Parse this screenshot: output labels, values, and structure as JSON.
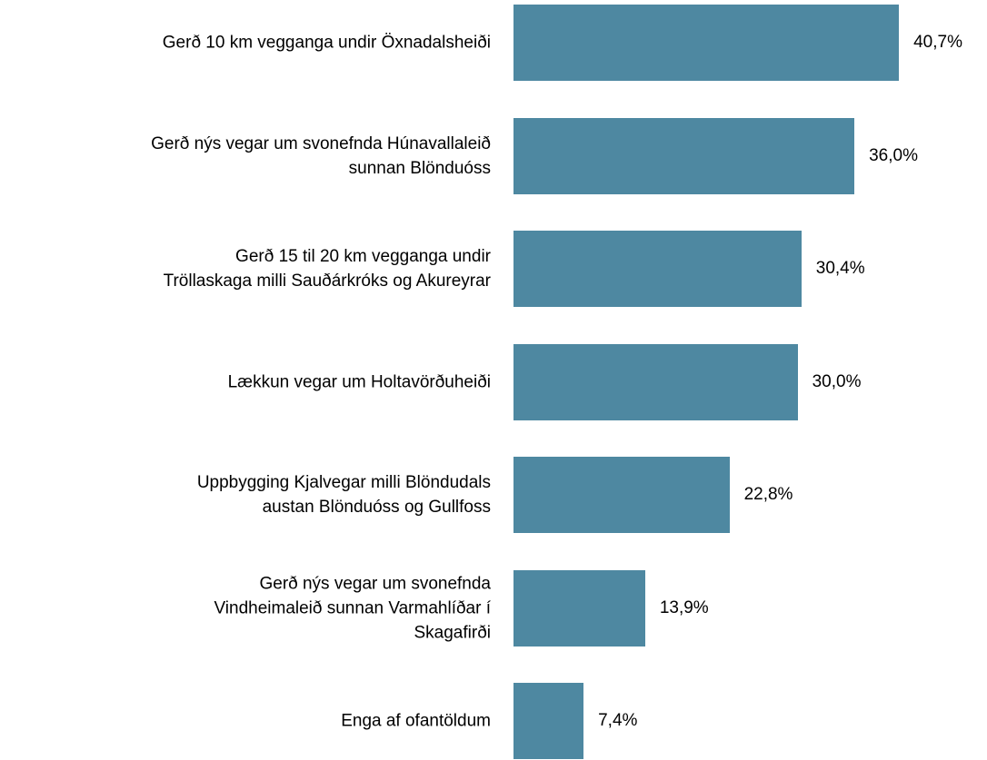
{
  "chart_data": {
    "type": "bar",
    "orientation": "horizontal",
    "color": "#4e88a1",
    "categories": [
      "Gerð 10 km vegganga undir Öxnadalsheiði",
      "Gerð nýs vegar um svonefnda Húnavallaleið\nsunnan Blönduóss",
      "Gerð 15 til 20 km vegganga undir\nTröllaskaga milli Sauðárkróks og Akureyrar",
      "Lækkun vegar um Holtavörðuheiði",
      "Uppbygging Kjalvegar milli Blöndudals\naustan Blönduóss og Gullfoss",
      "Gerð nýs vegar um svonefnda\nVindheimaleið sunnan Varmahlíðar í\nSkagafirði",
      "Enga af ofantöldum"
    ],
    "values": [
      40.7,
      36.0,
      30.4,
      30.0,
      22.8,
      13.9,
      7.4
    ],
    "value_labels": [
      "40,7%",
      "36,0%",
      "30,4%",
      "30,0%",
      "22,8%",
      "13,9%",
      "7,4%"
    ]
  }
}
